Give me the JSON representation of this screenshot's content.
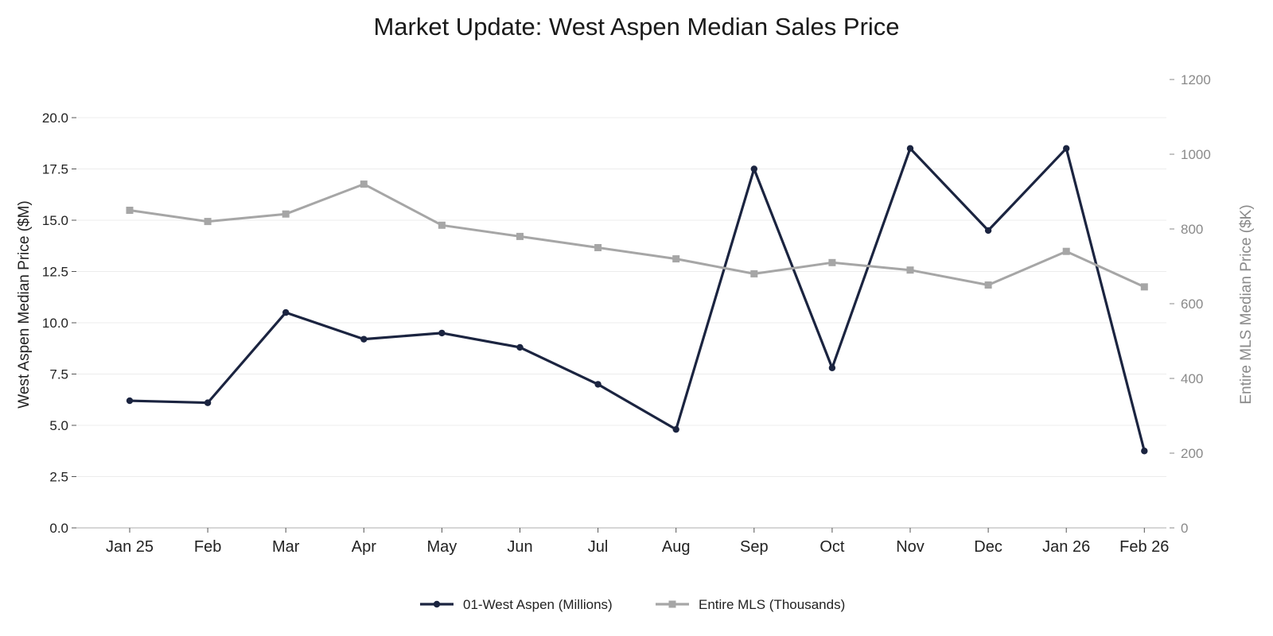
{
  "chart_data": {
    "type": "line",
    "title": "Market Update: West Aspen Median Sales Price",
    "categories": [
      "Jan 25",
      "Feb",
      "Mar",
      "Apr",
      "May",
      "Jun",
      "Jul",
      "Aug",
      "Sep",
      "Oct",
      "Nov",
      "Dec",
      "Jan 26",
      "Feb 26"
    ],
    "ylabel": "West Aspen Median Price ($M)",
    "y2label": "Entire MLS Median Price ($K)",
    "ylim": [
      0,
      20
    ],
    "y2lim": [
      0,
      1200
    ],
    "yticks": [
      "0.0",
      "2.5",
      "5.0",
      "7.5",
      "10.0",
      "12.5",
      "15.0",
      "17.5",
      "20.0"
    ],
    "y2ticks": [
      "0",
      "200",
      "400",
      "600",
      "800",
      "1000",
      "1200"
    ],
    "grid": true,
    "legend_position": "bottom-center",
    "series": [
      {
        "name": "01-West Aspen (Millions)",
        "axis": "left",
        "color": "#1b2440",
        "marker": "circle",
        "values": [
          6.2,
          6.1,
          10.5,
          9.2,
          9.5,
          8.8,
          7.0,
          4.8,
          17.5,
          7.8,
          18.5,
          14.5,
          18.5,
          3.75
        ]
      },
      {
        "name": "Entire MLS (Thousands)",
        "axis": "right",
        "color": "#a6a6a6",
        "marker": "square",
        "values": [
          850,
          820,
          840,
          920,
          810,
          780,
          750,
          720,
          680,
          710,
          690,
          650,
          740,
          645
        ]
      }
    ]
  }
}
